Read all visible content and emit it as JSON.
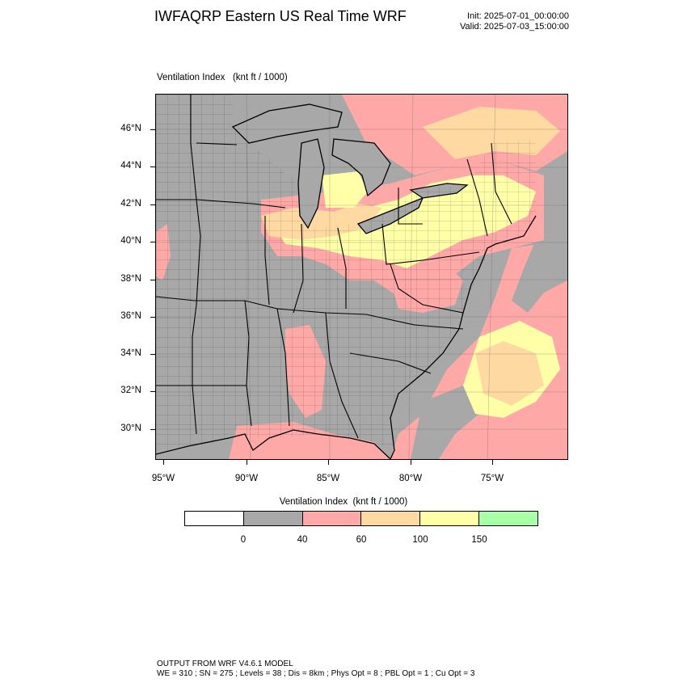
{
  "header": {
    "title": "IWFAQRP Eastern US Real Time WRF",
    "init": "Init: 2025-07-01_00:00:00",
    "valid": "Valid: 2025-07-03_15:00:00"
  },
  "map": {
    "title": "Ventilation Index   (knt ft / 1000)",
    "lat_labels": [
      "46°N",
      "44°N",
      "42°N",
      "40°N",
      "38°N",
      "36°N",
      "34°N",
      "32°N",
      "30°N"
    ],
    "lon_labels": [
      "95°W",
      "90°W",
      "85°W",
      "80°W",
      "75°W"
    ],
    "colors": {
      "gray": "#a8a8a8",
      "pink": "#ffa8a8",
      "peach": "#ffd9a2",
      "yellow": "#ffffa8",
      "green": "#a8ffa8",
      "white": "#ffffff"
    }
  },
  "legend": {
    "title": "Ventilation Index  (knt ft / 1000)",
    "boxes": [
      "#ffffff",
      "#a8a8a8",
      "#ffa8a8",
      "#ffd9a2",
      "#ffffa8",
      "#a8ffa8"
    ],
    "labels": [
      "0",
      "40",
      "60",
      "100",
      "150"
    ]
  },
  "footer": {
    "line1": "OUTPUT FROM WRF V4.6.1 MODEL",
    "line2": "WE = 310 ; SN = 275 ; Levels = 38 ; Dis = 8km ; Phys Opt = 8 ; PBL Opt = 1 ; Cu Opt = 3"
  }
}
